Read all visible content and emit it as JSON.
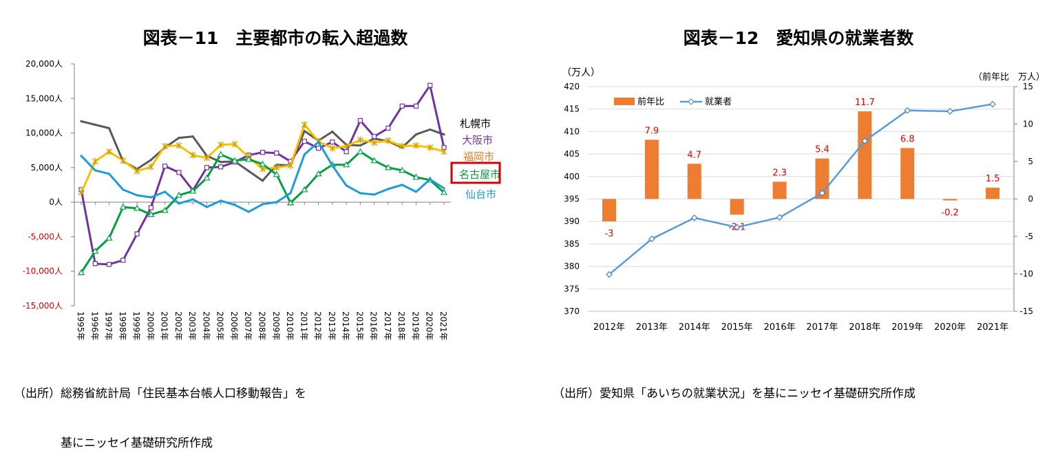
{
  "chart_data": [
    {
      "type": "line",
      "title": "図表－11　主要都市の転入超過数",
      "source_lines": [
        "（出所）総務省統計局「住民基本台帳人口移動報告」を",
        "　　　　基にニッセイ基礎研究所作成"
      ],
      "y_ticks": [
        "20,000人",
        "15,000人",
        "10,000人",
        "5,000人",
        "0人",
        "-5,000人",
        "-10,000人",
        "-15,000人"
      ],
      "ylim": [
        -15000,
        20000
      ],
      "x": [
        "1995年",
        "1996年",
        "1997年",
        "1998年",
        "1999年",
        "2000年",
        "2001年",
        "2002年",
        "2003年",
        "2004年",
        "2005年",
        "2006年",
        "2007年",
        "2008年",
        "2009年",
        "2010年",
        "2011年",
        "2012年",
        "2013年",
        "2014年",
        "2015年",
        "2016年",
        "2017年",
        "2018年",
        "2019年",
        "2020年",
        "2021年"
      ],
      "series": [
        {
          "name": "札幌市",
          "color": "#595959",
          "values": [
            11700,
            11200,
            10700,
            5900,
            4800,
            6100,
            7900,
            9300,
            9500,
            6700,
            5800,
            5900,
            4500,
            3100,
            5400,
            5300,
            10300,
            8900,
            10200,
            8300,
            8200,
            9200,
            8800,
            7900,
            9800,
            10500,
            9800
          ]
        },
        {
          "name": "大阪市",
          "color": "#7030a0",
          "values": [
            1800,
            -8900,
            -9000,
            -8400,
            -4600,
            -800,
            5200,
            4300,
            1700,
            5000,
            5100,
            5800,
            6800,
            7200,
            7100,
            5900,
            8800,
            7800,
            8700,
            7300,
            11800,
            9500,
            10700,
            13900,
            13900,
            16900,
            7900
          ]
        },
        {
          "name": "福岡市",
          "color": "#ed7d31",
          "legend_color": "#f8c000",
          "values": [
            1400,
            5900,
            7300,
            6000,
            4500,
            5100,
            8100,
            8200,
            6800,
            6400,
            8300,
            8400,
            6500,
            4800,
            5000,
            5300,
            11200,
            8800,
            7800,
            8100,
            9000,
            8600,
            8900,
            8100,
            8200,
            7900,
            7300
          ]
        },
        {
          "name": "名古屋市",
          "color": "#00a040",
          "values": [
            -10200,
            -7100,
            -5200,
            -700,
            -900,
            -1800,
            -1200,
            1000,
            1600,
            3500,
            6900,
            6000,
            6200,
            5500,
            4000,
            -100,
            1800,
            4100,
            5400,
            5400,
            7300,
            6000,
            5000,
            4600,
            3600,
            3200,
            1400
          ]
        },
        {
          "name": "仙台市",
          "color": "#1e9bd7",
          "values": [
            6700,
            4600,
            4100,
            1800,
            1000,
            700,
            1500,
            -200,
            400,
            -700,
            200,
            -400,
            -1400,
            -300,
            0,
            1300,
            6900,
            8700,
            5300,
            2400,
            1300,
            1100,
            1900,
            2500,
            1500,
            3300,
            2000
          ]
        }
      ]
    },
    {
      "type": "bar+line",
      "title": "図表－12　愛知県の就業者数",
      "source_lines": [
        "（出所）愛知県「あいちの就業状況」を基にニッセイ基礎研究所作成"
      ],
      "left_unit": "（万人）",
      "right_unit": "（前年比　万人）",
      "categories": [
        "2012年",
        "2013年",
        "2014年",
        "2015年",
        "2016年",
        "2017年",
        "2018年",
        "2019年",
        "2020年",
        "2021年"
      ],
      "left_ticks": [
        420,
        415,
        410,
        405,
        400,
        395,
        390,
        385,
        380,
        375,
        370
      ],
      "right_ticks": [
        15,
        10,
        5,
        0,
        -5,
        -10,
        -15
      ],
      "ylim_left": [
        370,
        420
      ],
      "ylim_right": [
        -15,
        15
      ],
      "series": [
        {
          "name": "前年比",
          "type": "bar",
          "axis": "right",
          "color": "#ed7d31",
          "values": [
            -3,
            7.9,
            4.7,
            -2.1,
            2.3,
            5.4,
            11.7,
            6.8,
            -0.2,
            1.5
          ],
          "labels": [
            "-3",
            "7.9",
            "4.7",
            "-2.1",
            "2.3",
            "5.4",
            "11.7",
            "6.8",
            "-0.2",
            "1.5"
          ]
        },
        {
          "name": "就業者",
          "type": "line",
          "axis": "left",
          "color": "#5b9bd5",
          "values": [
            378.2,
            386.1,
            390.8,
            388.7,
            390.9,
            396.3,
            407.9,
            414.7,
            414.5,
            416.1
          ]
        }
      ]
    }
  ]
}
